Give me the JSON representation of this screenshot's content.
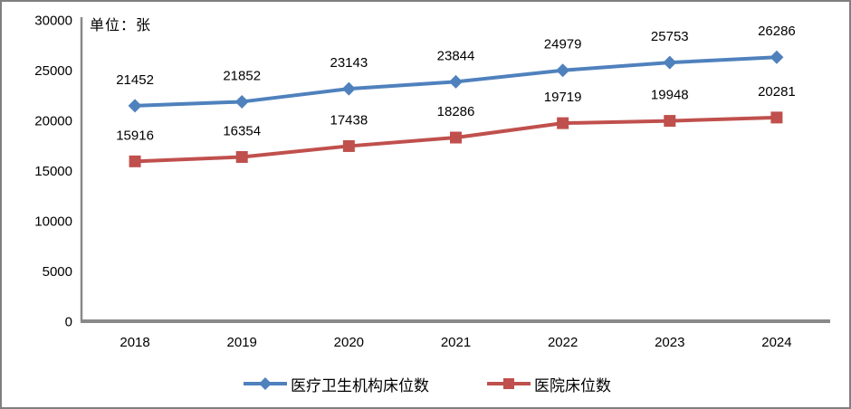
{
  "unit_label": "单位：张",
  "colors": {
    "series_blue": "#4F81BD",
    "series_red": "#C0504D",
    "axis_line": "#898989",
    "chart_border": "#808080",
    "text": "#000000",
    "background": "#FFFFFF"
  },
  "chart_data": {
    "type": "line",
    "title": "",
    "xlabel": "",
    "ylabel": "单位：张",
    "categories": [
      "2018",
      "2019",
      "2020",
      "2021",
      "2022",
      "2023",
      "2024"
    ],
    "series": [
      {
        "name": "医疗卫生机构床位数",
        "values": [
          21452,
          21852,
          23143,
          23844,
          24979,
          25753,
          26286
        ],
        "color": "#4F81BD",
        "marker": "diamond"
      },
      {
        "name": "医院床位数",
        "values": [
          15916,
          16354,
          17438,
          18286,
          19719,
          19948,
          20281
        ],
        "color": "#C0504D",
        "marker": "square"
      }
    ],
    "ylim": [
      0,
      30000
    ],
    "ytick_interval": 5000,
    "yticks": [
      0,
      5000,
      10000,
      15000,
      20000,
      25000,
      30000
    ],
    "grid": false,
    "data_labels": true,
    "legend_position": "bottom"
  }
}
